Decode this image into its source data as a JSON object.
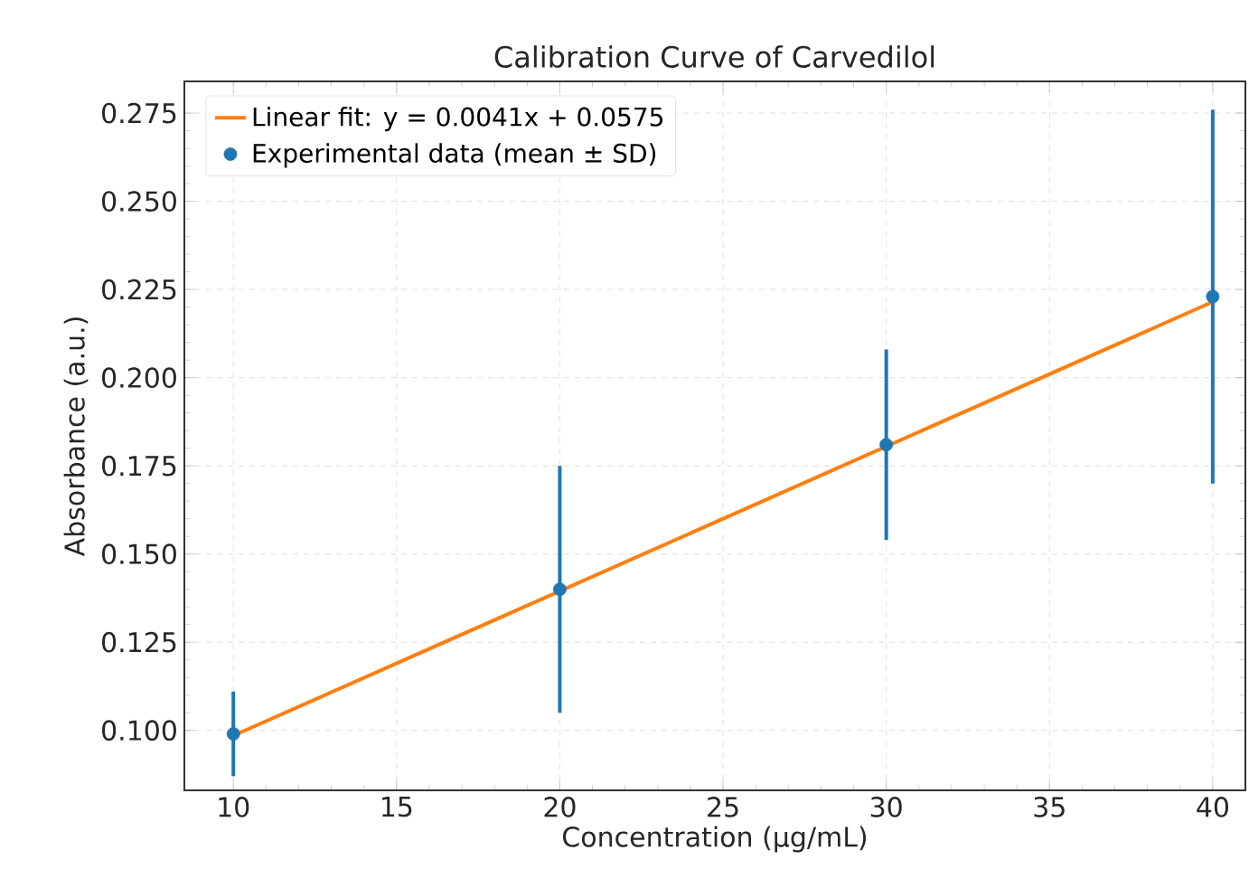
{
  "chart_data": {
    "type": "scatter",
    "title": "Calibration Curve of Carvedilol",
    "xlabel": "Concentration (µg/mL)",
    "ylabel": "Absorbance (a.u.)",
    "xlim": [
      8.5,
      41
    ],
    "ylim": [
      0.083,
      0.284
    ],
    "xticks": [
      10,
      15,
      20,
      25,
      30,
      35,
      40
    ],
    "yticks": [
      {
        "value": 0.1,
        "label": "0.100"
      },
      0.125,
      {
        "value": 0.15,
        "label": "0.150"
      },
      0.175,
      {
        "value": 0.2,
        "label": "0.200"
      },
      0.225,
      {
        "value": 0.25,
        "label": "0.250"
      },
      0.275
    ],
    "grid": true,
    "legend": "top left",
    "series": [
      {
        "name": "Linear fit: y = 0.0041x + 0.0575",
        "type": "line",
        "color": "#ff7f0e",
        "x": [
          10,
          40
        ],
        "values": [
          0.0985,
          0.2215
        ],
        "marker": "none",
        "line_style": "solid"
      },
      {
        "name": "Experimental data (mean ± SD)",
        "color": "#1f77b4",
        "x": [
          10,
          20,
          30,
          40
        ],
        "values": [
          0.099,
          0.14,
          0.181,
          0.223
        ],
        "errors": [
          0.012,
          0.035,
          0.027,
          0.053
        ],
        "marker": "circle"
      }
    ]
  }
}
